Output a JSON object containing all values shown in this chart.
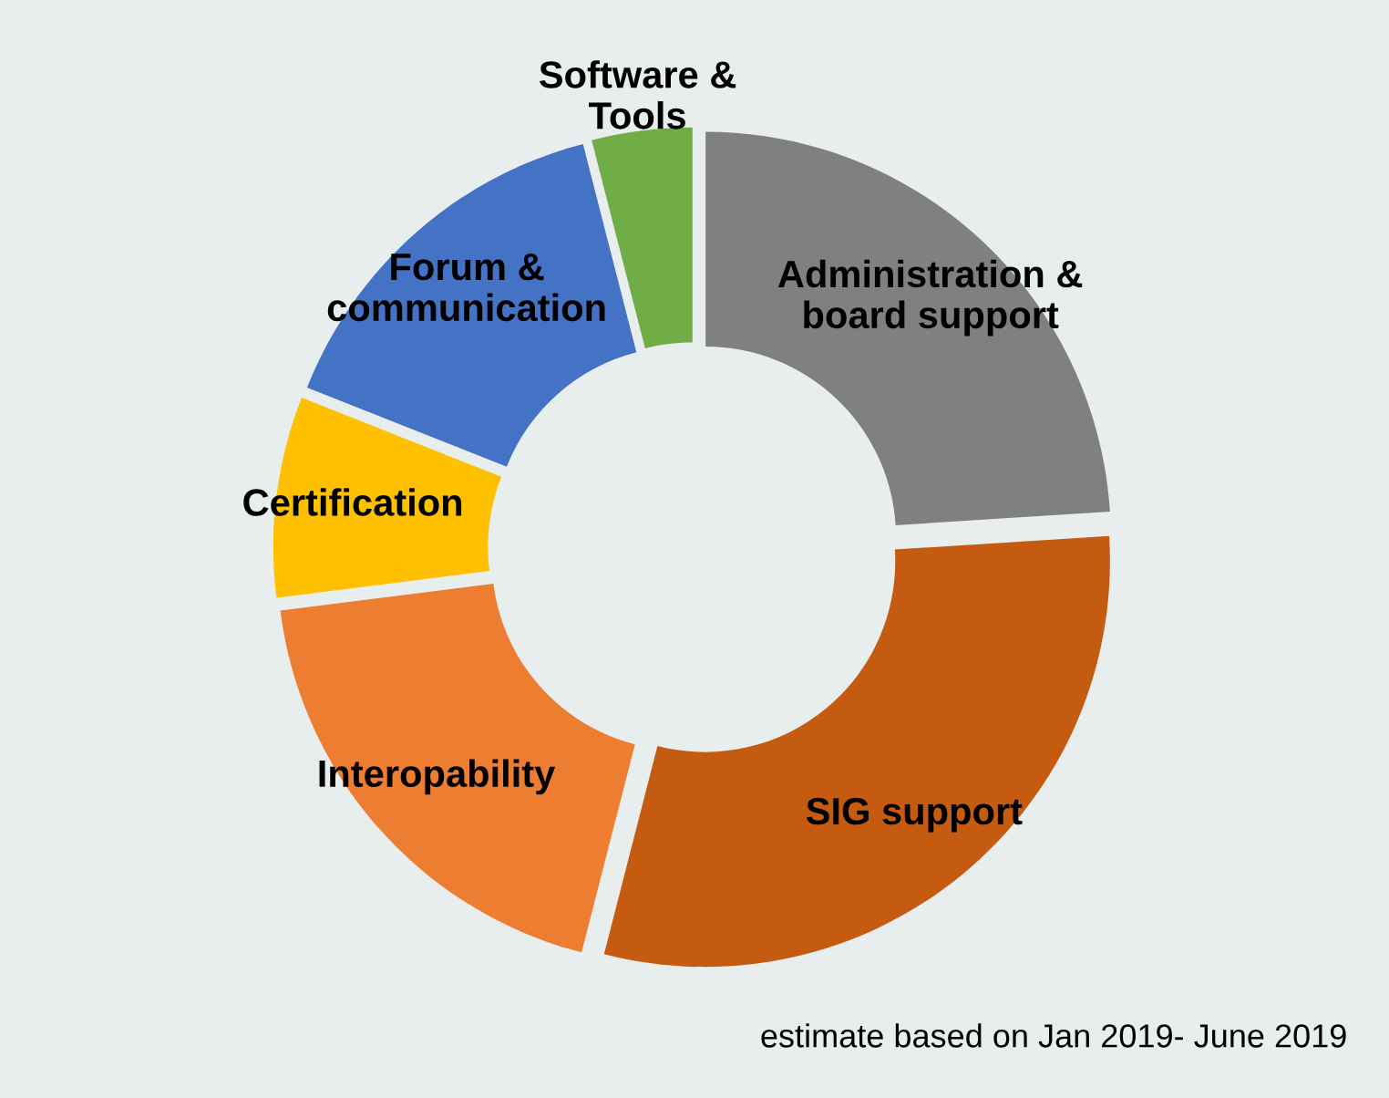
{
  "chart_data": {
    "type": "donut",
    "categories": [
      "Administration &\nboard support",
      "SIG support",
      "Interopability",
      "Certification",
      "Forum &\ncommunication",
      "Software &\nTools"
    ],
    "values": [
      24,
      30,
      19,
      8,
      15,
      4
    ],
    "colors": [
      "#808080",
      "#c55a11",
      "#ed7d31",
      "#ffc000",
      "#4472c4",
      "#70ad47"
    ],
    "annotations": [
      "estimate based on Jan 2019- June 2019"
    ],
    "legend": false
  }
}
